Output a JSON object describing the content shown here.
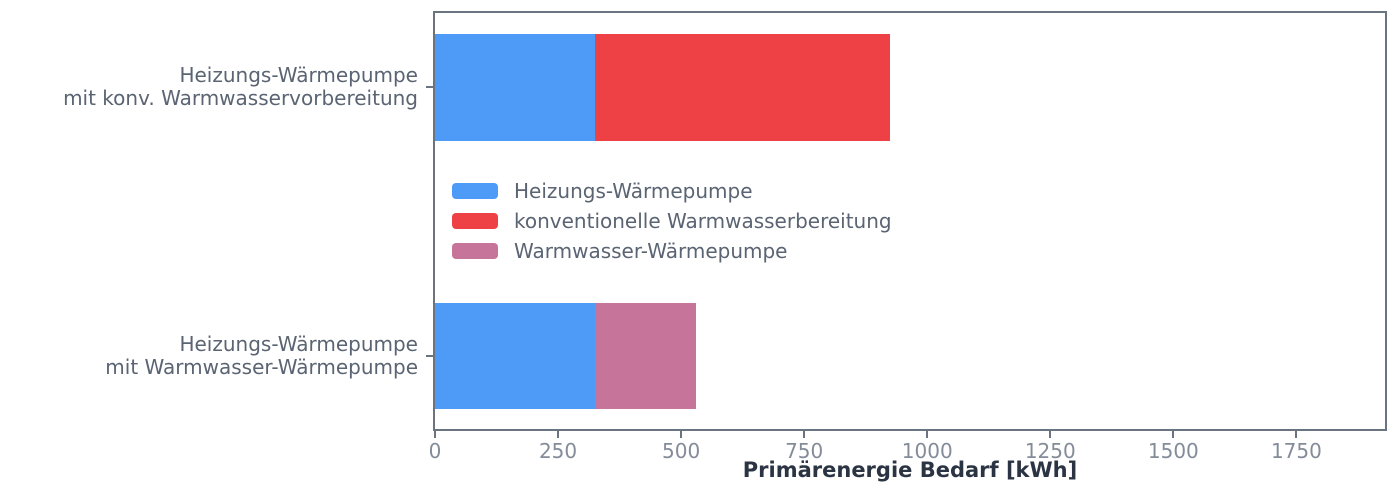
{
  "figure": {
    "background": "#ffffff"
  },
  "axes": {
    "xlabel": "Primärenergie Bedarf [kWh]",
    "spine_color": "#6A7380",
    "tick_label_color": "#848C99",
    "category_label_color": "#5A6472",
    "xlabel_color": "#2B3442"
  },
  "chart_data": {
    "type": "bar",
    "orientation": "horizontal",
    "stacked": true,
    "title": "",
    "xlabel": "Primärenergie Bedarf [kWh]",
    "ylabel": "",
    "categories": [
      "Heizungs-Wärmepumpe\nmit konv. Warmwasservorbereitung",
      "Heizungs-Wärmepumpe\nmit Warmwasser-Wärmepumpe"
    ],
    "series": [
      {
        "name": "Heizungs-Wärmepumpe",
        "color": "#4D9BF7",
        "values": [
          325,
          325
        ]
      },
      {
        "name": "konventionelle Warmwasserbereitung",
        "color": "#EE4145",
        "values": [
          600,
          0
        ]
      },
      {
        "name": "Warmwasser-Wärmepumpe",
        "color": "#C7749B",
        "values": [
          0,
          205
        ]
      }
    ],
    "totals": [
      925,
      530
    ],
    "xlim": [
      0,
      1930
    ],
    "xticks": [
      0,
      250,
      500,
      750,
      1000,
      1250,
      1500,
      1750
    ],
    "grid": false,
    "legend_position": "upper-left-inside"
  }
}
